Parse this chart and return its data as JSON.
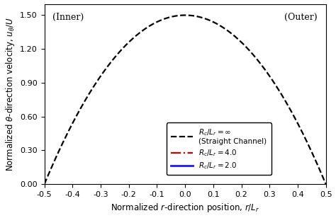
{
  "title": "",
  "xlabel": "Normalized $r$-direction position, $r/L_r$",
  "ylabel": "Normalized $\\theta$-direction velocity, $u_\\theta/U$",
  "xlim": [
    -0.5,
    0.5
  ],
  "ylim": [
    0.0,
    1.6
  ],
  "yticks": [
    0.0,
    0.3,
    0.6,
    0.9,
    1.2,
    1.5
  ],
  "xticks": [
    -0.5,
    -0.4,
    -0.3,
    -0.2,
    -0.1,
    0.0,
    0.1,
    0.2,
    0.3,
    0.4,
    0.5
  ],
  "label_inner": "(Inner)",
  "label_outer": "(Outer)",
  "legend": [
    {
      "label": "$R_c/L_r = \\infty$\n(Straight Channel)",
      "color": "#000000",
      "linestyle": "--",
      "linewidth": 1.6
    },
    {
      "label": "$R_c/L_r = 4.0$",
      "color": "#cc0000",
      "linestyle": "-.",
      "linewidth": 1.6
    },
    {
      "label": "$R_c/L_r = 2.0$",
      "color": "#1a1aff",
      "linestyle": "-",
      "linewidth": 2.0
    }
  ],
  "background_color": "#ffffff",
  "figsize": [
    4.74,
    3.08
  ],
  "dpi": 100
}
